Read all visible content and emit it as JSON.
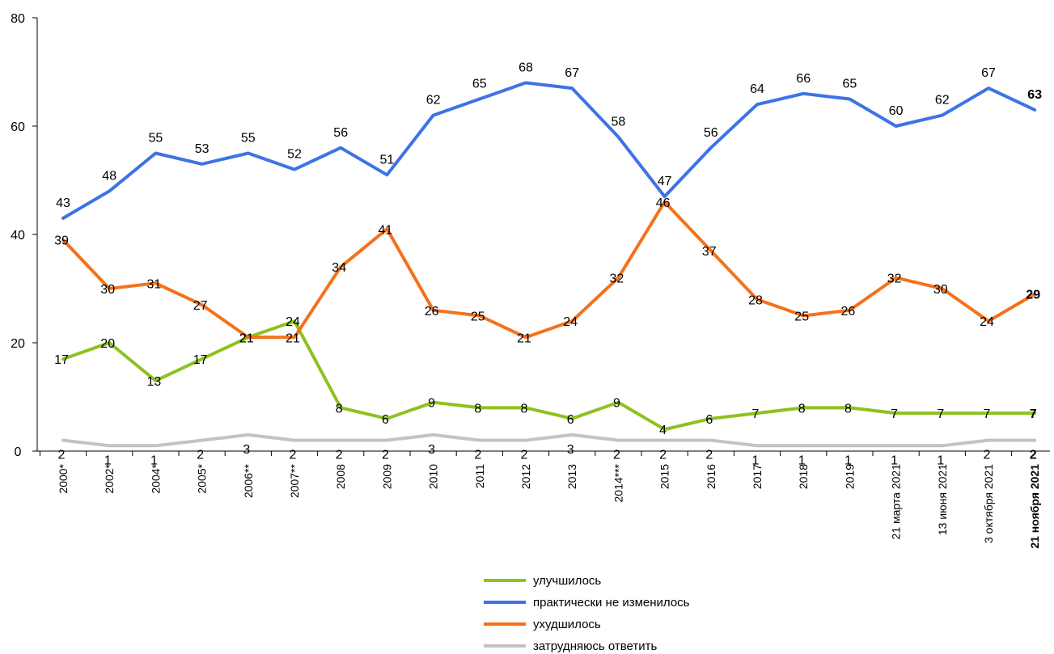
{
  "chart_data": {
    "type": "line",
    "categories": [
      "2000*",
      "2002*",
      "2004*",
      "2005*",
      "2006**",
      "2007**",
      "2008",
      "2009",
      "2010",
      "2011",
      "2012",
      "2013",
      "2014***",
      "2015",
      "2016",
      "2017",
      "2018",
      "2019",
      "21 марта 2021",
      "13 июня 2021",
      "3 октября 2021",
      "21 ноября 2021"
    ],
    "ylim": [
      0,
      80
    ],
    "yticks": [
      "0",
      "20",
      "40",
      "60",
      "80"
    ],
    "grid": false,
    "legend_position": "bottom",
    "series": [
      {
        "name": "улучшилось",
        "color": "#8DC21F",
        "values": [
          17,
          20,
          13,
          17,
          21,
          24,
          8,
          6,
          9,
          8,
          8,
          6,
          9,
          4,
          6,
          7,
          8,
          8,
          7,
          7,
          7,
          7
        ]
      },
      {
        "name": "практически не изменилось",
        "color": "#3E73E6",
        "values": [
          43,
          48,
          55,
          53,
          55,
          52,
          56,
          51,
          62,
          65,
          68,
          67,
          58,
          47,
          56,
          64,
          66,
          65,
          60,
          62,
          67,
          63
        ]
      },
      {
        "name": "ухудшилось",
        "color": "#F5711B",
        "values": [
          39,
          30,
          31,
          27,
          21,
          21,
          34,
          41,
          26,
          25,
          21,
          24,
          32,
          46,
          37,
          28,
          25,
          26,
          32,
          30,
          24,
          29
        ]
      },
      {
        "name": "затрудняюсь ответить",
        "color": "#C3C3C3",
        "values": [
          2,
          1,
          1,
          2,
          3,
          2,
          2,
          2,
          3,
          2,
          2,
          3,
          2,
          2,
          2,
          1,
          1,
          1,
          1,
          1,
          2,
          2
        ]
      }
    ]
  }
}
